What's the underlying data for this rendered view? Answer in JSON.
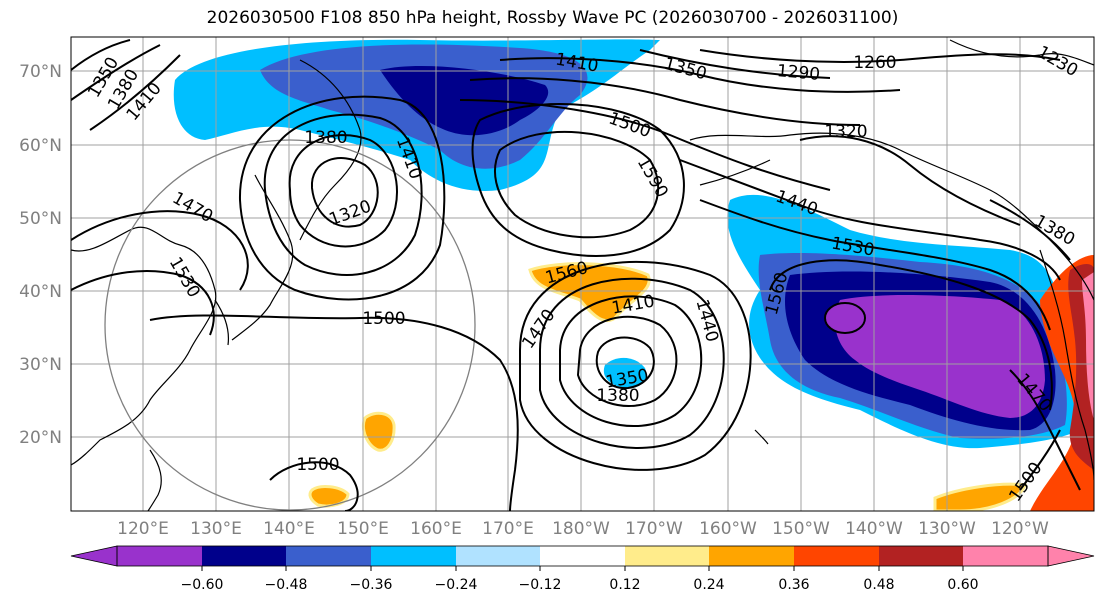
{
  "title": "2026030500 F108 850 hPa height, Rossby Wave PC (2026030700 - 2026031100)",
  "lat_labels": [
    "70°N",
    "60°N",
    "50°N",
    "40°N",
    "30°N",
    "20°N"
  ],
  "lon_labels": [
    "120°E",
    "130°E",
    "140°E",
    "150°E",
    "160°E",
    "170°E",
    "180°W",
    "170°W",
    "160°W",
    "150°W",
    "140°W",
    "130°W",
    "120°W"
  ],
  "colorbar": {
    "colors": [
      "#9932cc",
      "#00008b",
      "#3a5fcd",
      "#00bfff",
      "#b0e2ff",
      "#ffffff",
      "#ffec8b",
      "#ffa500",
      "#ff4500",
      "#b22222",
      "#ff82ab"
    ],
    "ticks": [
      "−0.60",
      "−0.48",
      "−0.36",
      "−0.24",
      "−0.12",
      "0.12",
      "0.24",
      "0.36",
      "0.48",
      "0.60"
    ]
  },
  "contour_labels": [
    "1350",
    "1380",
    "1410",
    "1410",
    "1350",
    "1290",
    "1260",
    "1230",
    "1380",
    "1410",
    "1500",
    "1590",
    "1320",
    "1470",
    "1320",
    "1440",
    "1380",
    "1530",
    "1530",
    "1560",
    "1560",
    "1410",
    "1440",
    "1470",
    "1500",
    "1350",
    "1380",
    "1470",
    "1500",
    "1500"
  ]
}
